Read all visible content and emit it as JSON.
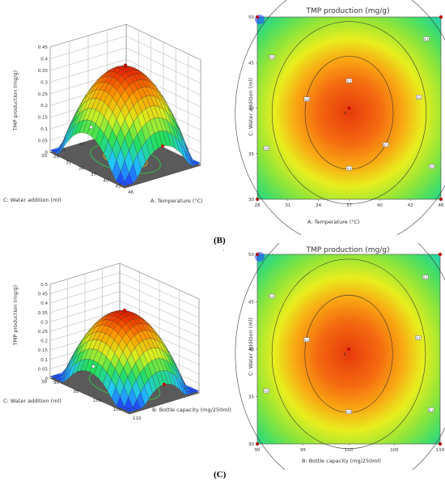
{
  "panel_labels": {
    "b": "(B)",
    "c": "(C)"
  },
  "stray_mark": "I",
  "chart_data": [
    {
      "id": "b-surface",
      "type": "surface3d",
      "title": "",
      "zlabel": "TMP production (mg/g)",
      "xlabel": "A: Temperature (°C)",
      "ylabel": "C: Water addition (ml)",
      "x_ticks": [
        "28",
        "31",
        "34",
        "37",
        "40",
        "43",
        "46"
      ],
      "y_ticks": [
        "30",
        "35",
        "40",
        "45",
        "50"
      ],
      "z_ticks": [
        "0",
        "0.05",
        "0.1",
        "0.15",
        "0.2",
        "0.25",
        "0.3",
        "0.35",
        "0.4",
        "0.45"
      ],
      "zlim": [
        0,
        0.45
      ],
      "peak": {
        "x": 37,
        "y": 40,
        "z": 0.39
      },
      "colors": [
        "#1f3fff",
        "#22c7ff",
        "#25e05a",
        "#d9f21f",
        "#ff9c00",
        "#e81c00"
      ]
    },
    {
      "id": "b-contour",
      "type": "contour",
      "title": "TMP production (mg/g)",
      "xlabel": "A: Temperature (°C)",
      "ylabel": "C: Water addition (ml)",
      "x_ticks": [
        "28",
        "31",
        "34",
        "37",
        "40",
        "43",
        "46"
      ],
      "y_ticks": [
        "30",
        "35",
        "40",
        "45",
        "50"
      ],
      "xlim": [
        28,
        46
      ],
      "ylim": [
        30,
        50
      ],
      "center": {
        "x": 37,
        "y": 39.5
      },
      "contour_labels": [
        "0.1",
        "0.1",
        "0.2",
        "0.2",
        "0.3",
        "0.3",
        "0.1",
        "0.1",
        "0.1"
      ],
      "center_value": "6",
      "design_points": [
        {
          "x": 28,
          "y": 50
        },
        {
          "x": 46,
          "y": 50
        },
        {
          "x": 28,
          "y": 30
        },
        {
          "x": 46,
          "y": 30
        },
        {
          "x": 37,
          "y": 40
        }
      ]
    },
    {
      "id": "c-surface",
      "type": "surface3d",
      "title": "",
      "zlabel": "TMP production (mg/g)",
      "xlabel": "B: Bottle capacity (mg/250ml)",
      "ylabel": "C: Water addition (ml)",
      "x_ticks": [
        "90",
        "95",
        "100",
        "105",
        "110"
      ],
      "y_ticks": [
        "30",
        "35",
        "40",
        "45",
        "50"
      ],
      "z_ticks": [
        "0",
        "0.05",
        "0.1",
        "0.15",
        "0.2",
        "0.25",
        "0.3",
        "0.35",
        "0.4",
        "0.45",
        "0.5"
      ],
      "zlim": [
        0,
        0.5
      ],
      "peak": {
        "x": 100,
        "y": 40,
        "z": 0.39
      },
      "colors": [
        "#1f3fff",
        "#22c7ff",
        "#25e05a",
        "#d9f21f",
        "#ff9c00",
        "#e81c00"
      ]
    },
    {
      "id": "c-contour",
      "type": "contour",
      "title": "TMP production (mg/g)",
      "xlabel": "B: Bottle capacity (mg/250ml)",
      "ylabel": "C: Water addition (ml)",
      "x_ticks": [
        "90",
        "95",
        "100",
        "105",
        "110"
      ],
      "y_ticks": [
        "30",
        "35",
        "40",
        "45",
        "50"
      ],
      "xlim": [
        90,
        110
      ],
      "ylim": [
        30,
        50
      ],
      "center": {
        "x": 100,
        "y": 39.5
      },
      "contour_labels": [
        "0.1",
        "0.1",
        "0.2",
        "0.2",
        "0.3",
        "0.1",
        "0.1"
      ],
      "center_value": "6",
      "design_points": [
        {
          "x": 90,
          "y": 50
        },
        {
          "x": 110,
          "y": 50
        },
        {
          "x": 90,
          "y": 30
        },
        {
          "x": 110,
          "y": 30
        },
        {
          "x": 100,
          "y": 40
        }
      ]
    }
  ]
}
